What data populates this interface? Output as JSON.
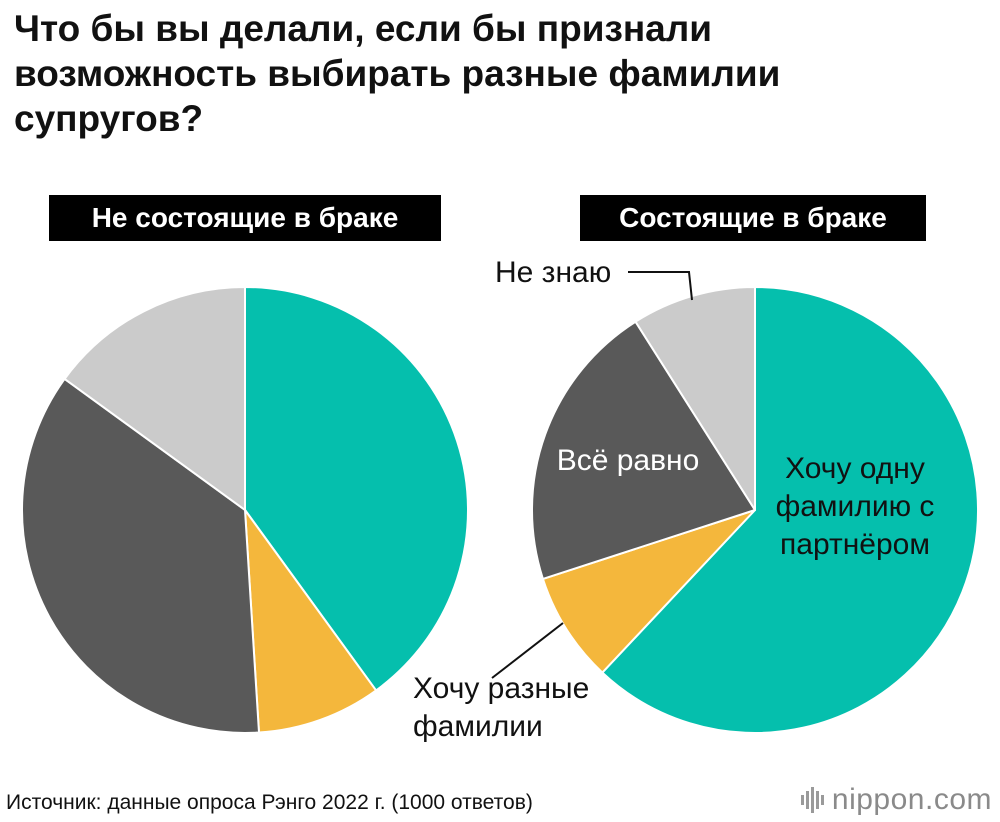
{
  "title": "Что бы вы делали, если бы признали возможность выбирать разные фамилии супругов?",
  "source": "Источник: данные опроса Рэнго 2022 г. (1000 ответов)",
  "logo": {
    "name": "nippon",
    "tld": ".com"
  },
  "colors": {
    "same_surname": "#05bfad",
    "different_surnames": "#f4b73c",
    "indifferent": "#595959",
    "dont_know": "#cbcbcb"
  },
  "chart_data": [
    {
      "type": "pie",
      "title": "Не состоящие в браке",
      "start_angle_deg": 0,
      "direction": "clockwise",
      "slices": [
        {
          "key": "same_surname",
          "label": "",
          "value": 40
        },
        {
          "key": "different_surnames",
          "label": "",
          "value": 9
        },
        {
          "key": "indifferent",
          "label": "",
          "value": 36
        },
        {
          "key": "dont_know",
          "label": "",
          "value": 15
        }
      ]
    },
    {
      "type": "pie",
      "title": "Состоящие в браке",
      "start_angle_deg": 0,
      "direction": "clockwise",
      "slices": [
        {
          "key": "same_surname",
          "label": "Хочу одну фамилию с партнёром",
          "label_lines": [
            "Хочу одну",
            "фамилию с",
            "партнёром"
          ],
          "value": 62
        },
        {
          "key": "different_surnames",
          "label": "Хочу разные фамилии",
          "label_lines": [
            "Хочу разные",
            "фамилии"
          ],
          "value": 8
        },
        {
          "key": "indifferent",
          "label": "Всё равно",
          "label_lines": [
            "Всё равно"
          ],
          "value": 21
        },
        {
          "key": "dont_know",
          "label": "Не знаю",
          "label_lines": [
            "Не знаю"
          ],
          "value": 9
        }
      ]
    }
  ]
}
